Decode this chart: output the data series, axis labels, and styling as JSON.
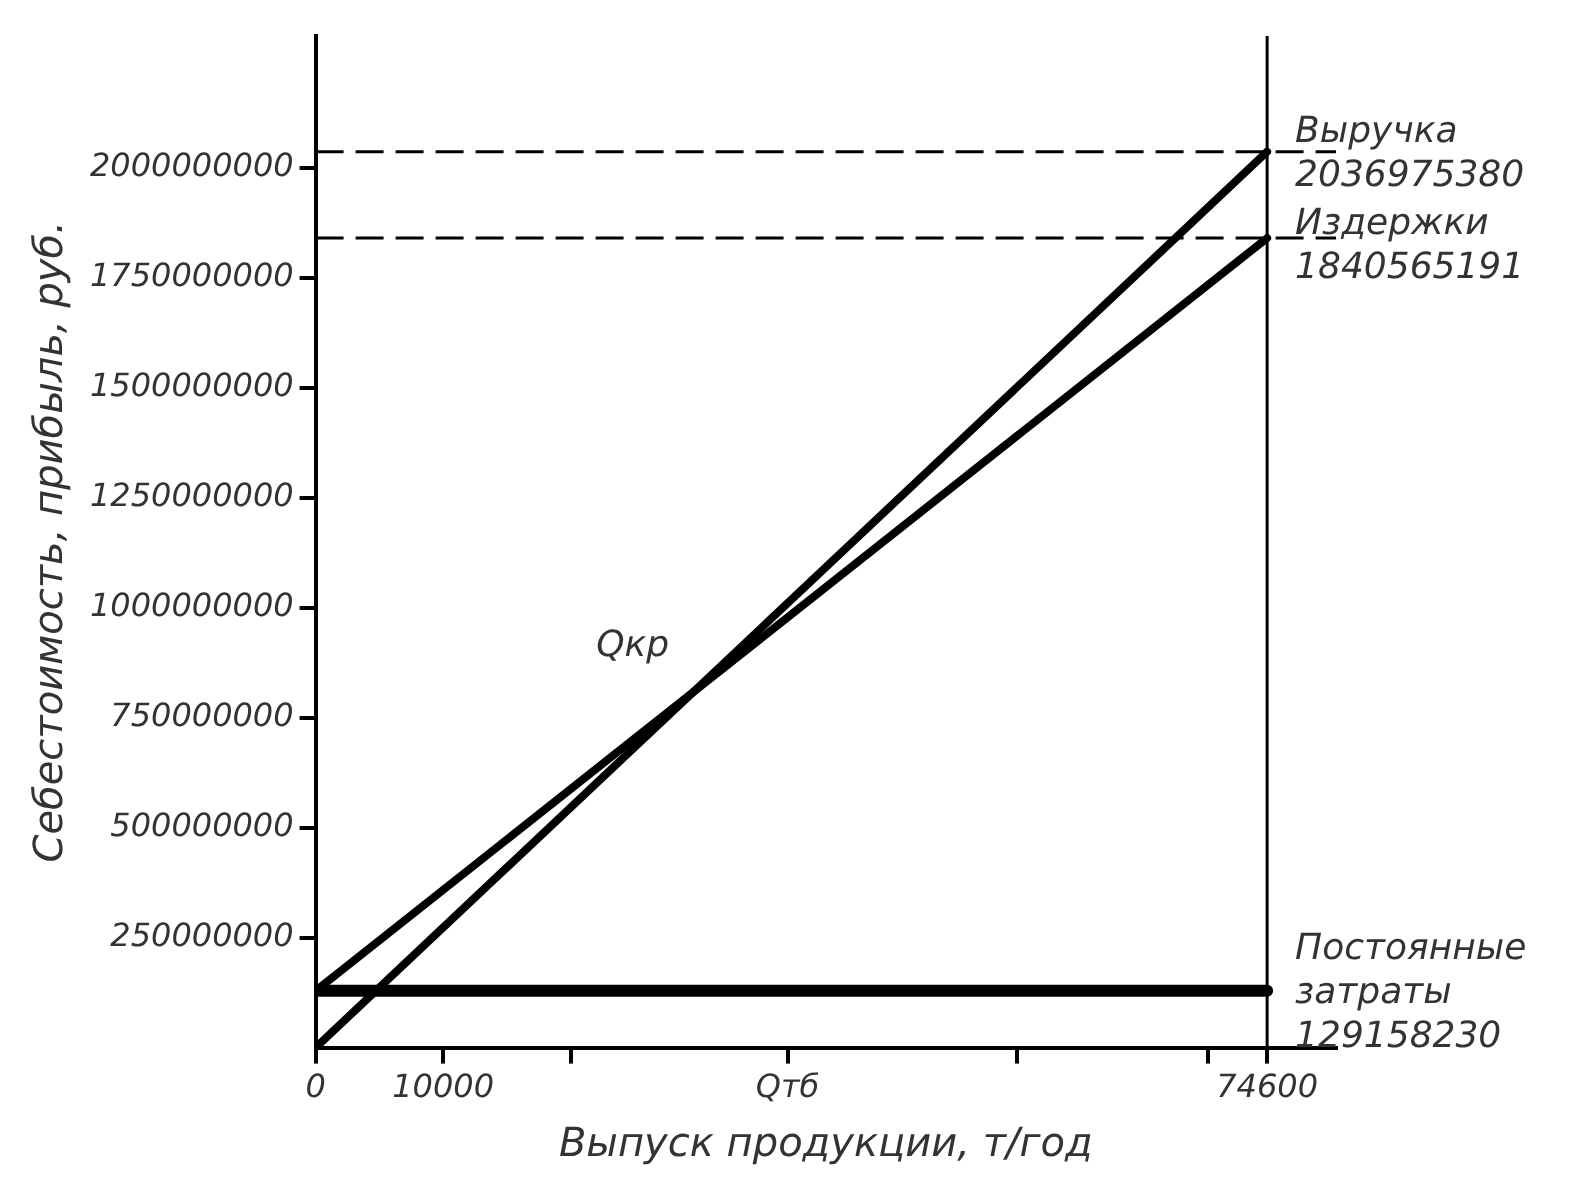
{
  "chart_data": {
    "type": "line",
    "xlabel": "Выпуск продукции, т/год",
    "ylabel": "Себестоимость, прибыль, руб.",
    "xlim": [
      0,
      80000
    ],
    "ylim": [
      0,
      2300000000
    ],
    "xticks": [
      0,
      10000,
      {
        "value": 20000,
        "label": null
      },
      {
        "value": 37000,
        "label": "Qтб"
      },
      {
        "value": 55000,
        "label": null
      },
      {
        "value": 70000,
        "label": null
      },
      74600
    ],
    "yticks": [
      250000000,
      500000000,
      750000000,
      1000000000,
      1250000000,
      1500000000,
      1750000000,
      2000000000
    ],
    "x": [
      0,
      74600
    ],
    "series": [
      {
        "name": "Выручка",
        "color": "#000000",
        "values": [
          0,
          2036975380
        ],
        "value_labels": [
          null,
          "2036975380"
        ]
      },
      {
        "name": "Издержки",
        "color": "#000000",
        "values": [
          129158230,
          1840565191
        ],
        "value_labels": [
          null,
          "1840565191"
        ]
      },
      {
        "name": "Постоянные затраты",
        "color": "#000000",
        "values": [
          129158230,
          129158230
        ],
        "value_labels": [
          null,
          "129158230"
        ]
      }
    ],
    "ref_lines": [
      {
        "axis": "y",
        "value": 2036975380,
        "line_style": "dashed",
        "color": "#000000"
      },
      {
        "axis": "y",
        "value": 1840565191,
        "line_style": "dashed",
        "color": "#000000"
      },
      {
        "axis": "x",
        "value": 74600,
        "line_style": "solid",
        "color": "#000000"
      }
    ],
    "annotations": [
      {
        "text": "Qкр",
        "x": 29594,
        "y": 808000000
      }
    ],
    "grid": false
  }
}
